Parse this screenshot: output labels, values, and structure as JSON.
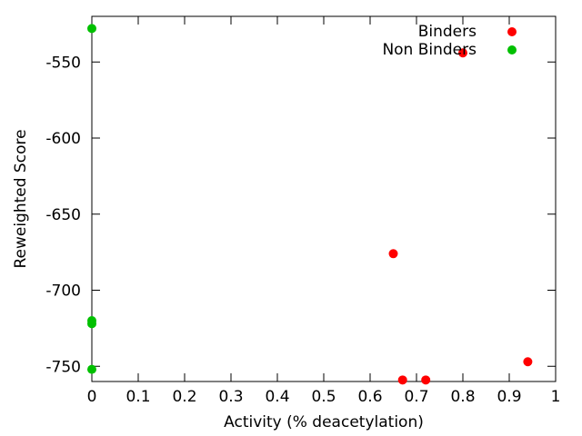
{
  "chart_data": {
    "type": "scatter",
    "title": "",
    "xlabel": "Activity (% deacetylation)",
    "ylabel": "Reweighted Score",
    "xlim": [
      0,
      1
    ],
    "ylim": [
      -760,
      -520
    ],
    "x_ticks": [
      0,
      0.1,
      0.2,
      0.3,
      0.4,
      0.5,
      0.6,
      0.7,
      0.8,
      0.9,
      1
    ],
    "x_tick_labels": [
      "0",
      "0.1",
      "0.2",
      "0.3",
      "0.4",
      "0.5",
      "0.6",
      "0.7",
      "0.8",
      "0.9",
      "1"
    ],
    "y_ticks": [
      -750,
      -700,
      -650,
      -600,
      -550
    ],
    "y_tick_labels": [
      "-750",
      "-700",
      "-650",
      "-600",
      "-550"
    ],
    "grid": false,
    "legend_position": "top-right",
    "series": [
      {
        "name": "Binders",
        "color": "#ff0000",
        "points": [
          {
            "x": 0.8,
            "y": -544
          },
          {
            "x": 0.65,
            "y": -676
          },
          {
            "x": 0.67,
            "y": -759
          },
          {
            "x": 0.72,
            "y": -759
          },
          {
            "x": 0.94,
            "y": -747
          }
        ]
      },
      {
        "name": "Non Binders",
        "color": "#00c000",
        "points": [
          {
            "x": 0,
            "y": -528
          },
          {
            "x": 0,
            "y": -720
          },
          {
            "x": 0,
            "y": -722
          },
          {
            "x": 0,
            "y": -752
          }
        ]
      }
    ]
  }
}
